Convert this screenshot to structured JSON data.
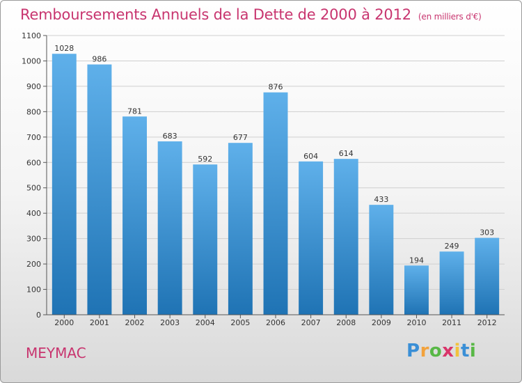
{
  "title": "Remboursements Annuels de la Dette de 2000 à 2012",
  "unit": "(en milliers d'€)",
  "town": "MEYMAC",
  "logo": {
    "letters": [
      "P",
      "r",
      "o",
      "x",
      "i",
      "t",
      "i"
    ],
    "colors": [
      "#3a8fd6",
      "#f2a23c",
      "#58b846",
      "#d9356a",
      "#f2c23c",
      "#3a8fd6",
      "#58b846"
    ]
  },
  "colors": {
    "bar_top": "#5fb0ea",
    "bar_bottom": "#1f73b4",
    "title": "#c8356f"
  },
  "chart_data": {
    "type": "bar",
    "title": "Remboursements Annuels de la Dette de 2000 à 2012",
    "xlabel": "",
    "ylabel": "",
    "categories": [
      "2000",
      "2001",
      "2002",
      "2003",
      "2004",
      "2005",
      "2006",
      "2007",
      "2008",
      "2009",
      "2010",
      "2011",
      "2012"
    ],
    "values": [
      1028,
      986,
      781,
      683,
      592,
      677,
      876,
      604,
      614,
      433,
      194,
      249,
      303
    ],
    "ylim": [
      0,
      1100
    ],
    "yticks": [
      0,
      100,
      200,
      300,
      400,
      500,
      600,
      700,
      800,
      900,
      1000,
      1100
    ],
    "grid": true
  }
}
